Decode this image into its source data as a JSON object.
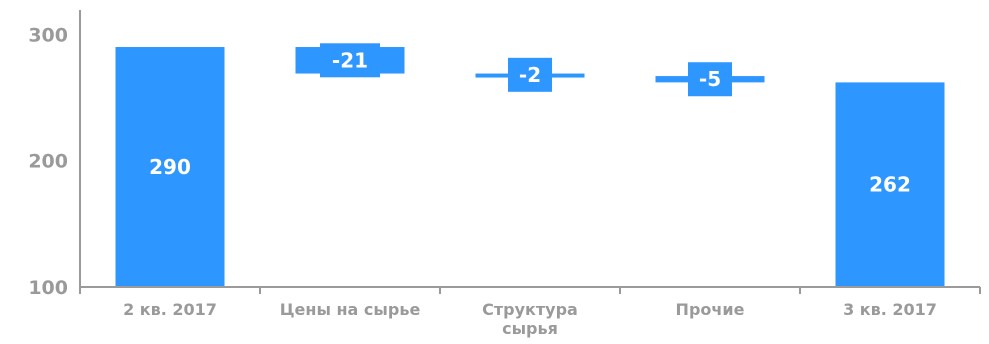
{
  "chart_data": {
    "type": "bar",
    "subtype": "waterfall",
    "title": "",
    "xlabel": "",
    "ylabel": "",
    "ylim": [
      100,
      300
    ],
    "yticks": [
      100,
      200,
      300
    ],
    "grid": false,
    "legend": "none",
    "bar_color": "#2E96FF",
    "axis_color": "#9A9A9A",
    "categories": [
      [
        "2 кв. 2017"
      ],
      [
        "Цены на сырье"
      ],
      [
        "Структура",
        "сырья"
      ],
      [
        "Прочие"
      ],
      [
        "3 кв. 2017"
      ]
    ],
    "items": [
      {
        "kind": "total",
        "start": 100,
        "end": 290,
        "label": "290"
      },
      {
        "kind": "delta",
        "start": 290,
        "end": 269,
        "label": "-21"
      },
      {
        "kind": "delta",
        "start": 269,
        "end": 267,
        "label": "-2"
      },
      {
        "kind": "delta",
        "start": 267,
        "end": 262,
        "label": "-5"
      },
      {
        "kind": "total",
        "start": 100,
        "end": 262,
        "label": "262"
      }
    ]
  }
}
